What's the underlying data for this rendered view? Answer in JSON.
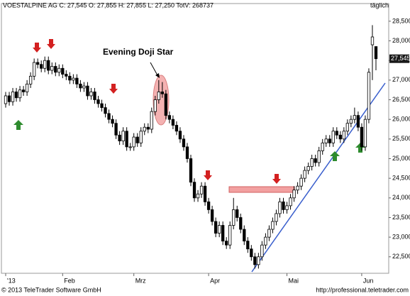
{
  "chart_data": {
    "type": "candlestick",
    "title": "VOESTALPINE AG C: 27,545 O: 27,855 H: 27,855 L: 27,250 TotV: 268737",
    "period": "täglich",
    "annotation": "Evening Doji Star",
    "last_label": "27,545",
    "footer_left": "© 2013 TeleTrader Software GmbH",
    "footer_right": "http://professional.teletrader.com",
    "categories": [
      "'13",
      null,
      null,
      null,
      null,
      null,
      null,
      null,
      null,
      null,
      null,
      null,
      null,
      null,
      null,
      null,
      "Feb",
      null,
      null,
      null,
      null,
      null,
      null,
      null,
      null,
      null,
      null,
      null,
      null,
      null,
      null,
      null,
      null,
      null,
      null,
      null,
      "Mrz",
      null,
      null,
      null,
      null,
      null,
      null,
      null,
      null,
      null,
      null,
      null,
      null,
      null,
      null,
      null,
      null,
      null,
      null,
      null,
      null,
      "Apr",
      null,
      null,
      null,
      null,
      null,
      null,
      null,
      null,
      null,
      null,
      null,
      null,
      null,
      null,
      null,
      null,
      null,
      null,
      null,
      null,
      null,
      "Mai",
      null,
      null,
      null,
      null,
      null,
      null,
      null,
      null,
      null,
      null,
      null,
      null,
      null,
      null,
      null,
      null,
      null,
      null,
      null,
      null,
      "Jun",
      null,
      null,
      null,
      null
    ],
    "open": [
      26400,
      26600,
      26450,
      26700,
      26550,
      26750,
      26700,
      26900,
      27100,
      27450,
      27400,
      27300,
      27500,
      27250,
      27350,
      27200,
      27300,
      27150,
      27100,
      27000,
      27050,
      26900,
      26800,
      26850,
      26600,
      26700,
      26500,
      26400,
      26300,
      26150,
      26000,
      25900,
      25600,
      25450,
      25700,
      25300,
      25300,
      25550,
      25400,
      25700,
      25800,
      25750,
      26200,
      26500,
      26700,
      26650,
      26100,
      26000,
      25850,
      25700,
      25500,
      25300,
      25000,
      24400,
      24000,
      24100,
      24300,
      23900,
      23700,
      23400,
      23100,
      23300,
      22900,
      22800,
      23300,
      23700,
      23500,
      23200,
      22900,
      22700,
      22500,
      22300,
      22500,
      22800,
      23000,
      23200,
      23400,
      23600,
      23900,
      23700,
      23800,
      24000,
      24200,
      24300,
      24500,
      24700,
      24800,
      25000,
      24900,
      25200,
      25400,
      25500,
      25400,
      25700,
      25600,
      25500,
      25700,
      25900,
      26000,
      26100,
      25800,
      25300,
      26000,
      27900,
      27855
    ],
    "high": [
      26700,
      26700,
      26800,
      26800,
      26850,
      26850,
      27000,
      27200,
      27550,
      27550,
      27500,
      27600,
      27600,
      27450,
      27450,
      27400,
      27400,
      27250,
      27200,
      27150,
      27150,
      27000,
      26950,
      26950,
      26800,
      26800,
      26600,
      26500,
      26400,
      26250,
      26100,
      26000,
      25700,
      25800,
      25800,
      25400,
      25650,
      25650,
      25800,
      25900,
      25900,
      26300,
      26600,
      27000,
      26950,
      26750,
      26200,
      26100,
      25950,
      25800,
      25600,
      25400,
      25100,
      24500,
      24200,
      24400,
      24400,
      24000,
      23800,
      23500,
      23400,
      23400,
      23000,
      23400,
      24000,
      23800,
      23600,
      23300,
      23000,
      22800,
      22600,
      22600,
      22900,
      23100,
      23300,
      23500,
      23700,
      24000,
      24000,
      23900,
      24100,
      24300,
      24400,
      24600,
      24800,
      24900,
      25100,
      25100,
      25300,
      25500,
      25600,
      25600,
      25800,
      25800,
      25700,
      25800,
      26000,
      26100,
      26300,
      26200,
      25900,
      26100,
      27300,
      28400,
      27855
    ],
    "low": [
      26300,
      26350,
      26350,
      26450,
      26450,
      26600,
      26600,
      26800,
      27000,
      27300,
      27200,
      27200,
      27150,
      27150,
      27100,
      27100,
      27050,
      27000,
      26900,
      26900,
      26800,
      26700,
      26700,
      26500,
      26500,
      26400,
      26300,
      26200,
      26050,
      25900,
      25800,
      25500,
      25350,
      25350,
      25200,
      25200,
      25200,
      25300,
      25300,
      25600,
      25650,
      25650,
      26100,
      26400,
      26550,
      26000,
      25900,
      25750,
      25600,
      25400,
      25200,
      24900,
      24300,
      23900,
      23900,
      24000,
      23800,
      23600,
      23300,
      23000,
      23000,
      22800,
      22700,
      22700,
      23200,
      23400,
      23100,
      22800,
      22600,
      22400,
      22200,
      22200,
      22400,
      22700,
      22900,
      23100,
      23300,
      23500,
      23600,
      23600,
      23700,
      23900,
      24100,
      24200,
      24400,
      24600,
      24700,
      24800,
      24800,
      25100,
      25300,
      25300,
      25300,
      25500,
      25400,
      25400,
      25600,
      25800,
      25900,
      25700,
      25200,
      25200,
      25900,
      27000,
      27250
    ],
    "close": [
      26600,
      26450,
      26700,
      26550,
      26750,
      26700,
      26900,
      27100,
      27450,
      27400,
      27300,
      27500,
      27250,
      27350,
      27200,
      27300,
      27150,
      27100,
      27000,
      27050,
      26900,
      26800,
      26850,
      26600,
      26700,
      26500,
      26400,
      26300,
      26150,
      26000,
      25900,
      25600,
      25450,
      25700,
      25300,
      25300,
      25550,
      25400,
      25700,
      25800,
      25750,
      26200,
      26500,
      26700,
      26650,
      26100,
      26000,
      25850,
      25700,
      25500,
      25300,
      25000,
      24400,
      24000,
      24100,
      24300,
      23900,
      23700,
      23400,
      23100,
      23300,
      22900,
      22800,
      23300,
      23700,
      23500,
      23200,
      22900,
      22700,
      22500,
      22300,
      22500,
      22800,
      23000,
      23200,
      23400,
      23600,
      23900,
      23700,
      23800,
      24000,
      24200,
      24300,
      24500,
      24700,
      24800,
      25000,
      24900,
      25200,
      25400,
      25500,
      25400,
      25700,
      25600,
      25500,
      25700,
      25900,
      26000,
      26100,
      25800,
      25300,
      26000,
      27200,
      28100,
      27545
    ],
    "ylim": [
      22080,
      28950
    ],
    "yticks": [
      {
        "value": 22500,
        "label": "22,500"
      },
      {
        "value": 23000,
        "label": "23,000"
      },
      {
        "value": 23500,
        "label": "23,500"
      },
      {
        "value": 24000,
        "label": "24,000"
      },
      {
        "value": 24500,
        "label": "24,500"
      },
      {
        "value": 25000,
        "label": "25,000"
      },
      {
        "value": 25500,
        "label": "25,500"
      },
      {
        "value": 26000,
        "label": "26,000"
      },
      {
        "value": 26500,
        "label": "26,500"
      },
      {
        "value": 27000,
        "label": "27,000"
      },
      {
        "value": 27500,
        "label": "27,500"
      },
      {
        "value": 28000,
        "label": "28,000"
      },
      {
        "value": 28500,
        "label": "28,500"
      }
    ],
    "up_color": "#ffffff",
    "down_color": "#000000",
    "last_color": "#1a1a1a"
  }
}
